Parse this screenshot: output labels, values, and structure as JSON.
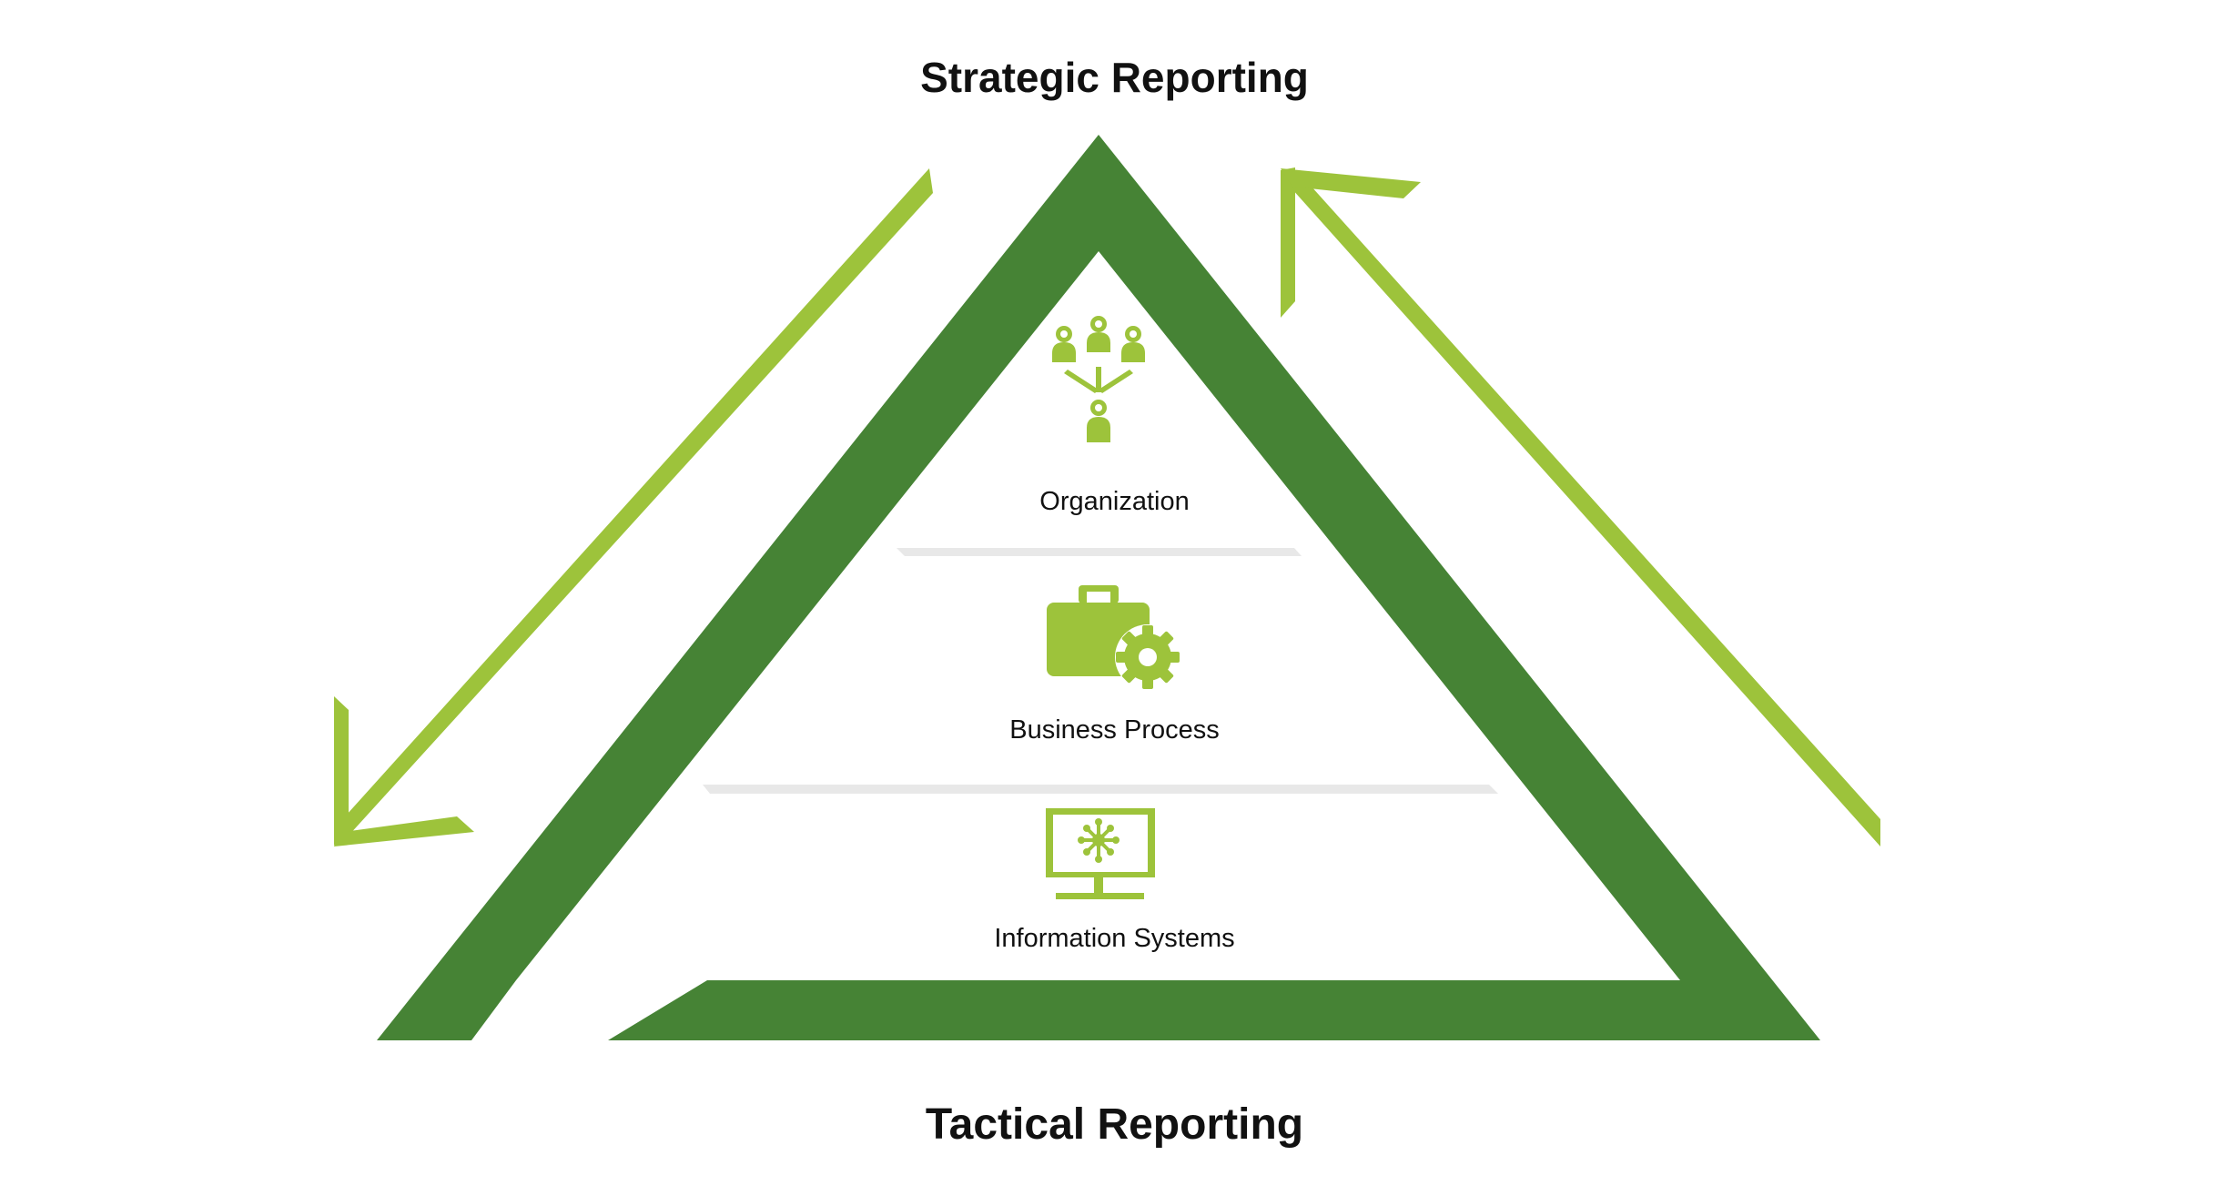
{
  "diagram": {
    "top_label": "Strategic Reporting",
    "bottom_label": "Tactical Reporting",
    "layers": [
      {
        "label": "Organization",
        "icon": "org-chart-icon"
      },
      {
        "label": "Business Process",
        "icon": "briefcase-gear-icon"
      },
      {
        "label": "Information Systems",
        "icon": "monitor-network-icon"
      }
    ]
  },
  "colors": {
    "triangle": "#468335",
    "arrows": "#9dc33b",
    "icons": "#9dc33b",
    "dividers": "#e8e8e8",
    "text": "#111111"
  }
}
